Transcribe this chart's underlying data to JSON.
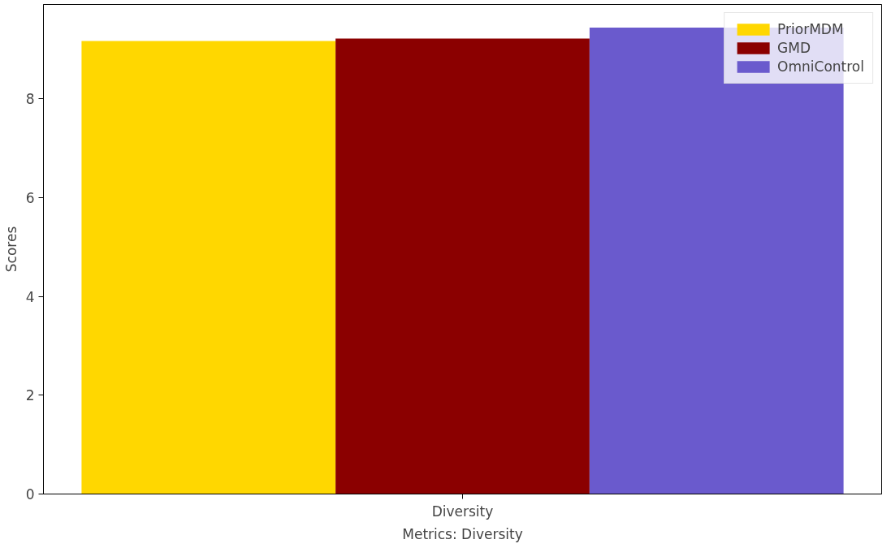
{
  "chart_data": {
    "type": "bar",
    "xlabel": "Metrics: Diversity",
    "ylabel": "Scores",
    "categories": [
      "Diversity"
    ],
    "series": [
      {
        "name": "PriorMDM",
        "color": "#ffd700",
        "values": [
          9.17
        ]
      },
      {
        "name": "GMD",
        "color": "#8b0000",
        "values": [
          9.22
        ]
      },
      {
        "name": "OmniControl",
        "color": "#6a5acd",
        "values": [
          9.44
        ]
      }
    ],
    "ylim": [
      0,
      9.91
    ],
    "yticks": [
      0,
      2,
      4,
      6,
      8
    ],
    "grid": false,
    "legend": "top right"
  }
}
